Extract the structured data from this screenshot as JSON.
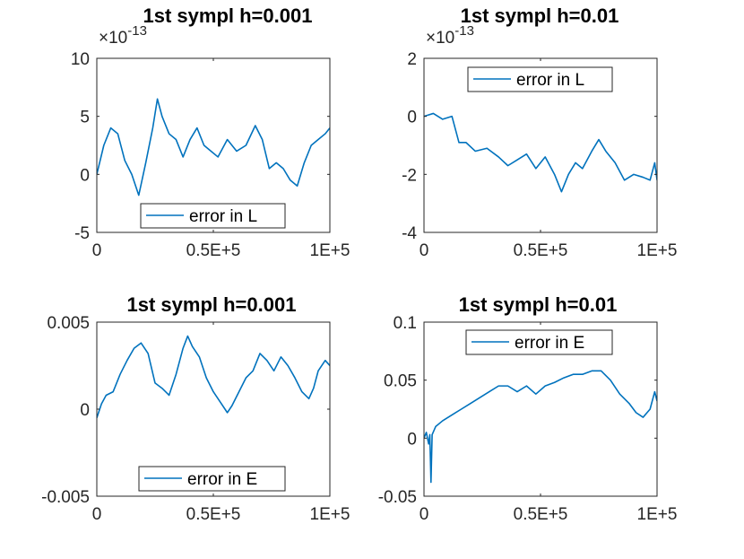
{
  "colors": {
    "series": "#0072BD",
    "axis": "#262626",
    "background": "#ffffff"
  },
  "chart_data": [
    {
      "type": "line",
      "title": "1st sympl h=0.001",
      "xlabel": "",
      "ylabel": "",
      "xlim": [
        0,
        100000
      ],
      "ylim": [
        -5,
        10
      ],
      "multiplier": {
        "base": "×10",
        "exponent": "-13"
      },
      "xticks": [
        0,
        50000,
        100000
      ],
      "xtick_labels": [
        "0",
        "0.5E+5",
        "1E+5"
      ],
      "yticks": [
        -5,
        0,
        5,
        10
      ],
      "ytick_labels": [
        "-5",
        "0",
        "5",
        "10"
      ],
      "legend": {
        "position": "bottom",
        "entries": [
          "error in L"
        ]
      },
      "series": [
        {
          "name": "error in L",
          "points": [
            [
              0,
              0
            ],
            [
              3000,
              2.5
            ],
            [
              6000,
              4
            ],
            [
              9000,
              3.5
            ],
            [
              12000,
              1.2
            ],
            [
              15000,
              0
            ],
            [
              18000,
              -1.8
            ],
            [
              21000,
              1
            ],
            [
              24000,
              4
            ],
            [
              26000,
              6.5
            ],
            [
              28000,
              5
            ],
            [
              31000,
              3.5
            ],
            [
              34000,
              3
            ],
            [
              37000,
              1.5
            ],
            [
              40000,
              3
            ],
            [
              43000,
              4
            ],
            [
              46000,
              2.5
            ],
            [
              49000,
              2
            ],
            [
              52000,
              1.5
            ],
            [
              56000,
              3
            ],
            [
              60000,
              2
            ],
            [
              64000,
              2.5
            ],
            [
              68000,
              4.2
            ],
            [
              71000,
              3
            ],
            [
              74000,
              0.5
            ],
            [
              77000,
              1
            ],
            [
              80000,
              0.5
            ],
            [
              83000,
              -0.5
            ],
            [
              86000,
              -1
            ],
            [
              89000,
              1
            ],
            [
              92000,
              2.5
            ],
            [
              95000,
              3
            ],
            [
              98000,
              3.5
            ],
            [
              100000,
              4
            ]
          ]
        }
      ]
    },
    {
      "type": "line",
      "title": "1st sympl h=0.01",
      "xlabel": "",
      "ylabel": "",
      "xlim": [
        0,
        100000
      ],
      "ylim": [
        -4,
        2
      ],
      "multiplier": {
        "base": "×10",
        "exponent": "-13"
      },
      "xticks": [
        0,
        50000,
        100000
      ],
      "xtick_labels": [
        "0",
        "0.5E+5",
        "1E+5"
      ],
      "yticks": [
        -4,
        -2,
        0,
        2
      ],
      "ytick_labels": [
        "-4",
        "-2",
        "0",
        "2"
      ],
      "legend": {
        "position": "top",
        "entries": [
          "error in L"
        ]
      },
      "series": [
        {
          "name": "error in L",
          "points": [
            [
              0,
              0
            ],
            [
              4000,
              0.1
            ],
            [
              8000,
              -0.1
            ],
            [
              12000,
              0
            ],
            [
              15000,
              -0.9
            ],
            [
              18000,
              -0.9
            ],
            [
              22000,
              -1.2
            ],
            [
              27000,
              -1.1
            ],
            [
              32000,
              -1.4
            ],
            [
              36000,
              -1.7
            ],
            [
              40000,
              -1.5
            ],
            [
              44000,
              -1.3
            ],
            [
              48000,
              -1.8
            ],
            [
              52000,
              -1.4
            ],
            [
              56000,
              -2
            ],
            [
              59000,
              -2.6
            ],
            [
              62000,
              -2
            ],
            [
              65000,
              -1.6
            ],
            [
              68000,
              -1.8
            ],
            [
              72000,
              -1.2
            ],
            [
              75000,
              -0.8
            ],
            [
              78000,
              -1.2
            ],
            [
              82000,
              -1.6
            ],
            [
              86000,
              -2.2
            ],
            [
              90000,
              -2
            ],
            [
              94000,
              -2.1
            ],
            [
              97000,
              -2.2
            ],
            [
              99000,
              -1.6
            ],
            [
              100000,
              -2.2
            ]
          ]
        }
      ]
    },
    {
      "type": "line",
      "title": "1st sympl h=0.001",
      "xlabel": "",
      "ylabel": "",
      "xlim": [
        0,
        100000
      ],
      "ylim": [
        -0.005,
        0.005
      ],
      "xticks": [
        0,
        50000,
        100000
      ],
      "xtick_labels": [
        "0",
        "0.5E+5",
        "1E+5"
      ],
      "yticks": [
        -0.005,
        0,
        0.005
      ],
      "ytick_labels": [
        "-0.005",
        "0",
        "0.005"
      ],
      "legend": {
        "position": "bottom",
        "entries": [
          "error in E"
        ]
      },
      "series": [
        {
          "name": "error in E",
          "points": [
            [
              0,
              -0.0005
            ],
            [
              2000,
              0.0003
            ],
            [
              4000,
              0.0008
            ],
            [
              7000,
              0.001
            ],
            [
              10000,
              0.002
            ],
            [
              13000,
              0.0028
            ],
            [
              16000,
              0.0035
            ],
            [
              19000,
              0.0038
            ],
            [
              22000,
              0.0032
            ],
            [
              25000,
              0.0015
            ],
            [
              28000,
              0.0012
            ],
            [
              31000,
              0.0008
            ],
            [
              34000,
              0.002
            ],
            [
              37000,
              0.0035
            ],
            [
              39000,
              0.0042
            ],
            [
              41000,
              0.0036
            ],
            [
              44000,
              0.003
            ],
            [
              47000,
              0.0018
            ],
            [
              50000,
              0.001
            ],
            [
              53000,
              0.0004
            ],
            [
              56000,
              -0.0002
            ],
            [
              58000,
              0.0002
            ],
            [
              61000,
              0.001
            ],
            [
              64000,
              0.0018
            ],
            [
              67000,
              0.0022
            ],
            [
              70000,
              0.0032
            ],
            [
              73000,
              0.0028
            ],
            [
              76000,
              0.0022
            ],
            [
              79000,
              0.003
            ],
            [
              82000,
              0.0025
            ],
            [
              85000,
              0.0018
            ],
            [
              88000,
              0.001
            ],
            [
              91000,
              0.0006
            ],
            [
              93000,
              0.0012
            ],
            [
              95000,
              0.0022
            ],
            [
              98000,
              0.0028
            ],
            [
              100000,
              0.0025
            ]
          ]
        }
      ]
    },
    {
      "type": "line",
      "title": "1st sympl h=0.01",
      "xlabel": "",
      "ylabel": "",
      "xlim": [
        0,
        100000
      ],
      "ylim": [
        -0.05,
        0.1
      ],
      "xticks": [
        0,
        50000,
        100000
      ],
      "xtick_labels": [
        "0",
        "0.5E+5",
        "1E+5"
      ],
      "yticks": [
        -0.05,
        0,
        0.05,
        0.1
      ],
      "ytick_labels": [
        "-0.05",
        "0",
        "0.05",
        "0.1"
      ],
      "legend": {
        "position": "top",
        "entries": [
          "error in E"
        ]
      },
      "series": [
        {
          "name": "error in E",
          "points": [
            [
              0,
              0
            ],
            [
              1000,
              0.005
            ],
            [
              2000,
              -0.005
            ],
            [
              2500,
              0.003
            ],
            [
              3000,
              -0.038
            ],
            [
              3500,
              0.003
            ],
            [
              5000,
              0.01
            ],
            [
              8000,
              0.015
            ],
            [
              12000,
              0.02
            ],
            [
              16000,
              0.025
            ],
            [
              20000,
              0.03
            ],
            [
              24000,
              0.035
            ],
            [
              28000,
              0.04
            ],
            [
              32000,
              0.045
            ],
            [
              36000,
              0.045
            ],
            [
              40000,
              0.04
            ],
            [
              44000,
              0.045
            ],
            [
              48000,
              0.038
            ],
            [
              52000,
              0.045
            ],
            [
              56000,
              0.048
            ],
            [
              60000,
              0.052
            ],
            [
              64000,
              0.055
            ],
            [
              68000,
              0.055
            ],
            [
              72000,
              0.058
            ],
            [
              76000,
              0.058
            ],
            [
              80000,
              0.05
            ],
            [
              84000,
              0.038
            ],
            [
              88000,
              0.03
            ],
            [
              91000,
              0.022
            ],
            [
              94000,
              0.018
            ],
            [
              97000,
              0.025
            ],
            [
              99000,
              0.04
            ],
            [
              100000,
              0.032
            ]
          ]
        }
      ]
    }
  ]
}
